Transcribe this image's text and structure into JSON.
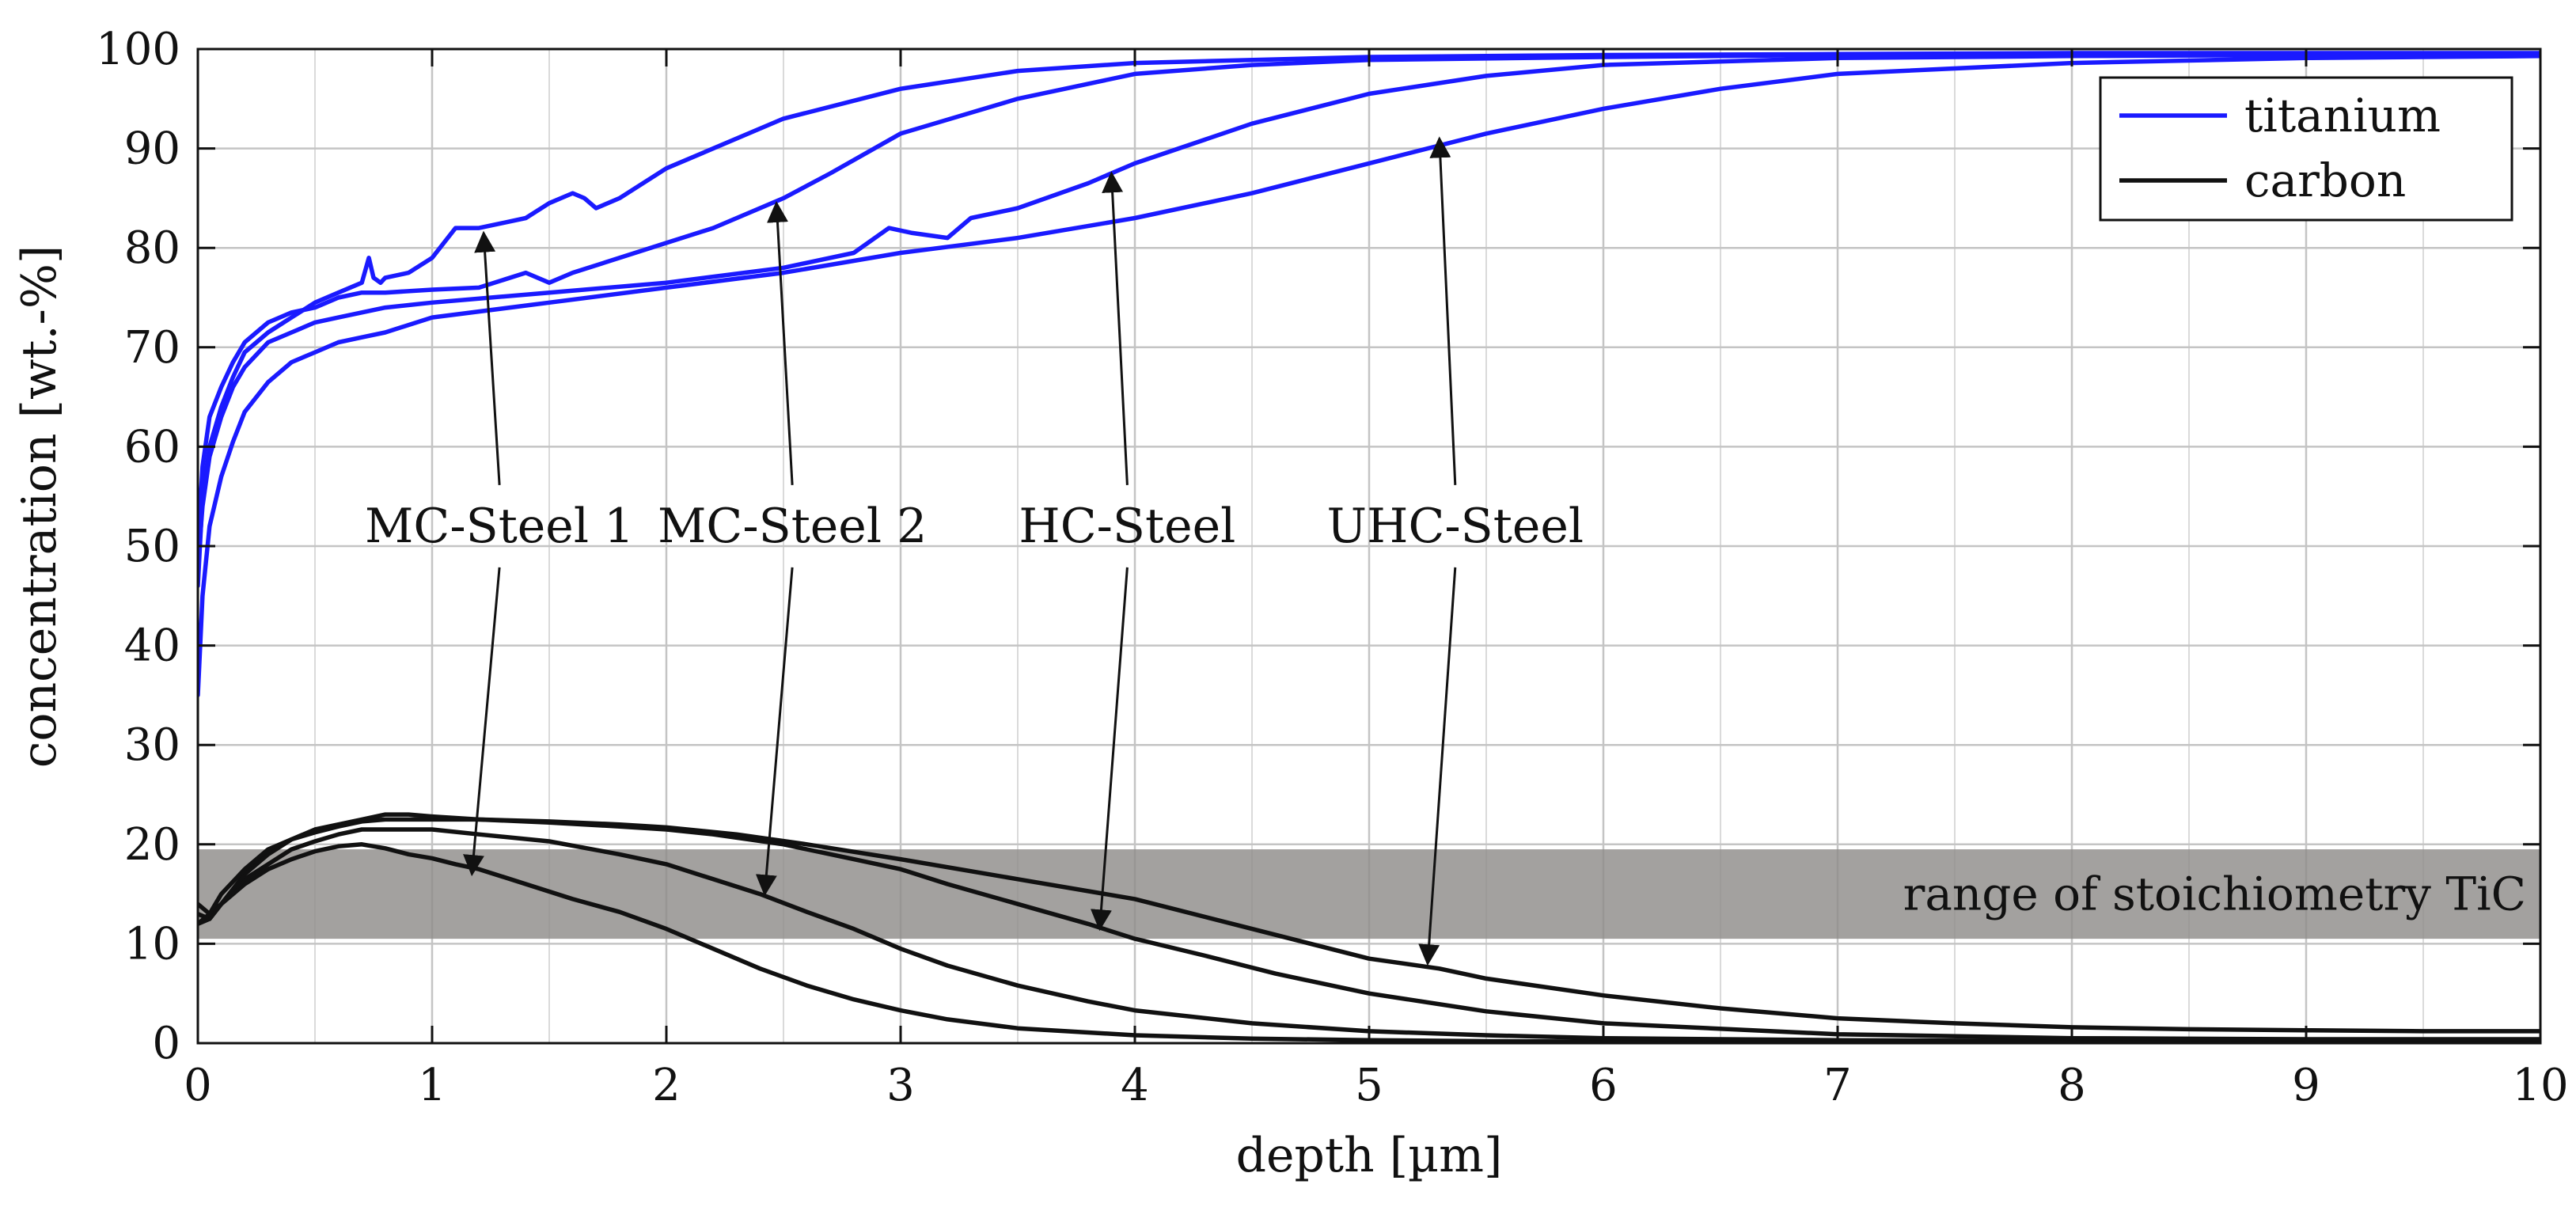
{
  "chart_data": {
    "type": "line",
    "title": "",
    "xlabel": "depth [µm]",
    "ylabel": "concentration [wt.-%]",
    "xlim": [
      0,
      10
    ],
    "ylim": [
      0,
      100
    ],
    "grid": true,
    "x_ticks": [
      0,
      1,
      2,
      3,
      4,
      5,
      6,
      7,
      8,
      9,
      10
    ],
    "y_ticks": [
      0,
      10,
      20,
      30,
      40,
      50,
      60,
      70,
      80,
      90,
      100
    ],
    "x_minor_step": 0.5,
    "legend": {
      "placement": "top-right",
      "entries": [
        {
          "label": "titanium",
          "color": "#1a1aff"
        },
        {
          "label": "carbon",
          "color": "#111111"
        }
      ]
    },
    "band": {
      "label": "range of stoichiometry TiC",
      "ymin": 10.5,
      "ymax": 19.5,
      "color": "#8f8c8a"
    },
    "series": [
      {
        "name": "MC-Steel 1 titanium",
        "element": "titanium",
        "color": "#1a1aff",
        "x": [
          0,
          0.02,
          0.05,
          0.1,
          0.15,
          0.2,
          0.3,
          0.4,
          0.5,
          0.6,
          0.7,
          0.73,
          0.75,
          0.78,
          0.8,
          0.9,
          1.0,
          1.1,
          1.2,
          1.3,
          1.4,
          1.5,
          1.6,
          1.65,
          1.7,
          1.8,
          2.0,
          2.5,
          3.0,
          3.5,
          4.0,
          5.0,
          6.0,
          7.0,
          8.0,
          9.0,
          10.0
        ],
        "y": [
          46,
          55,
          60,
          64,
          67,
          69.5,
          71.5,
          73,
          74.5,
          75.5,
          76.5,
          79,
          77,
          76.5,
          77,
          77.5,
          79,
          82,
          82,
          82.5,
          83,
          84.5,
          85.5,
          85,
          84,
          85,
          88,
          93,
          96,
          97.8,
          98.6,
          99.2,
          99.4,
          99.5,
          99.6,
          99.6,
          99.6
        ]
      },
      {
        "name": "MC-Steel 2 titanium",
        "element": "titanium",
        "color": "#1a1aff",
        "x": [
          0,
          0.02,
          0.05,
          0.1,
          0.15,
          0.2,
          0.3,
          0.4,
          0.5,
          0.6,
          0.7,
          0.8,
          1.0,
          1.2,
          1.4,
          1.5,
          1.6,
          1.8,
          2.0,
          2.2,
          2.5,
          2.7,
          3.0,
          3.5,
          4.0,
          4.5,
          5.0,
          6.0,
          7.0,
          8.0,
          9.0,
          10.0
        ],
        "y": [
          50,
          58,
          63,
          66,
          68.5,
          70.5,
          72.5,
          73.5,
          74,
          75,
          75.5,
          75.5,
          75.8,
          76,
          77.5,
          76.5,
          77.5,
          79,
          80.5,
          82,
          85,
          87.5,
          91.5,
          95,
          97.5,
          98.4,
          98.9,
          99.2,
          99.4,
          99.5,
          99.5,
          99.5
        ]
      },
      {
        "name": "HC-Steel titanium",
        "element": "titanium",
        "color": "#1a1aff",
        "x": [
          0,
          0.02,
          0.05,
          0.1,
          0.15,
          0.2,
          0.3,
          0.4,
          0.5,
          0.6,
          0.7,
          0.8,
          1.0,
          1.5,
          2.0,
          2.5,
          2.8,
          2.95,
          3.05,
          3.2,
          3.3,
          3.5,
          3.8,
          4.0,
          4.5,
          5.0,
          5.5,
          6.0,
          7.0,
          8.0,
          9.0,
          10.0
        ],
        "y": [
          48,
          54,
          59,
          63,
          66,
          68,
          70.5,
          71.5,
          72.5,
          73,
          73.5,
          74,
          74.5,
          75.5,
          76.5,
          78,
          79.5,
          82,
          81.5,
          81,
          83,
          84,
          86.5,
          88.5,
          92.5,
          95.5,
          97.3,
          98.4,
          99.1,
          99.3,
          99.4,
          99.5
        ]
      },
      {
        "name": "UHC-Steel titanium",
        "element": "titanium",
        "color": "#1a1aff",
        "x": [
          0,
          0.02,
          0.05,
          0.1,
          0.15,
          0.2,
          0.3,
          0.4,
          0.5,
          0.6,
          0.7,
          0.8,
          1.0,
          1.5,
          2.0,
          2.5,
          3.0,
          3.5,
          4.0,
          4.5,
          5.0,
          5.5,
          6.0,
          6.5,
          7.0,
          8.0,
          9.0,
          10.0
        ],
        "y": [
          35,
          45,
          52,
          57,
          60.5,
          63.5,
          66.5,
          68.5,
          69.5,
          70.5,
          71,
          71.5,
          73,
          74.5,
          76,
          77.5,
          79.5,
          81,
          83,
          85.5,
          88.5,
          91.5,
          94,
          96,
          97.5,
          98.6,
          99.1,
          99.3
        ]
      },
      {
        "name": "MC-Steel 1 carbon",
        "element": "carbon",
        "color": "#111111",
        "x": [
          0,
          0.05,
          0.1,
          0.2,
          0.3,
          0.4,
          0.5,
          0.6,
          0.7,
          0.8,
          0.9,
          1.0,
          1.1,
          1.2,
          1.4,
          1.6,
          1.8,
          2.0,
          2.2,
          2.4,
          2.6,
          2.8,
          3.0,
          3.2,
          3.5,
          4.0,
          4.5,
          5.0,
          5.5,
          6.0,
          7.0,
          8.0,
          9.0,
          10.0
        ],
        "y": [
          14,
          13,
          14,
          16,
          17.5,
          18.5,
          19.3,
          19.8,
          20,
          19.6,
          19,
          18.6,
          18,
          17.5,
          16,
          14.5,
          13.2,
          11.5,
          9.5,
          7.5,
          5.8,
          4.4,
          3.3,
          2.4,
          1.5,
          0.8,
          0.45,
          0.3,
          0.2,
          0.15,
          0.1,
          0.1,
          0.1,
          0.1
        ]
      },
      {
        "name": "MC-Steel 2 carbon",
        "element": "carbon",
        "color": "#111111",
        "x": [
          0,
          0.05,
          0.1,
          0.2,
          0.3,
          0.4,
          0.5,
          0.6,
          0.7,
          0.8,
          1.0,
          1.2,
          1.5,
          1.8,
          2.0,
          2.2,
          2.4,
          2.6,
          2.8,
          3.0,
          3.2,
          3.5,
          3.8,
          4.0,
          4.5,
          5.0,
          5.5,
          6.0,
          7.0,
          8.0,
          9.0,
          10.0
        ],
        "y": [
          12,
          12.5,
          14,
          16.5,
          18,
          19.5,
          20.3,
          21,
          21.5,
          21.5,
          21.5,
          21,
          20.3,
          19,
          18,
          16.5,
          15,
          13.2,
          11.5,
          9.5,
          7.8,
          5.8,
          4.2,
          3.3,
          2,
          1.2,
          0.8,
          0.5,
          0.3,
          0.2,
          0.2,
          0.2
        ]
      },
      {
        "name": "HC-Steel carbon",
        "element": "carbon",
        "color": "#111111",
        "x": [
          0,
          0.05,
          0.1,
          0.2,
          0.3,
          0.4,
          0.5,
          0.6,
          0.7,
          0.8,
          1.0,
          1.2,
          1.5,
          1.8,
          2.0,
          2.2,
          2.5,
          2.8,
          3.0,
          3.2,
          3.5,
          3.8,
          4.0,
          4.3,
          4.6,
          5.0,
          5.5,
          6.0,
          7.0,
          8.0,
          9.0,
          10.0
        ],
        "y": [
          13,
          12.5,
          14,
          17,
          19,
          20.5,
          21.2,
          21.8,
          22.3,
          22.5,
          22.5,
          22.5,
          22.2,
          21.8,
          21.5,
          21,
          20,
          18.5,
          17.5,
          16,
          14,
          12,
          10.5,
          8.8,
          7,
          5,
          3.2,
          2,
          0.9,
          0.5,
          0.4,
          0.4
        ]
      },
      {
        "name": "UHC-Steel carbon",
        "element": "carbon",
        "color": "#111111",
        "x": [
          0,
          0.05,
          0.1,
          0.2,
          0.3,
          0.4,
          0.5,
          0.6,
          0.7,
          0.8,
          0.9,
          1.0,
          1.2,
          1.5,
          1.8,
          2.0,
          2.3,
          2.6,
          3.0,
          3.5,
          4.0,
          4.5,
          5.0,
          5.3,
          5.5,
          6.0,
          6.5,
          7.0,
          7.5,
          8.0,
          8.5,
          9.0,
          9.5,
          10.0
        ],
        "y": [
          12,
          13,
          15,
          17.5,
          19.5,
          20.5,
          21.5,
          22,
          22.5,
          23,
          23,
          22.8,
          22.5,
          22.3,
          22,
          21.7,
          21,
          20,
          18.5,
          16.5,
          14.5,
          11.5,
          8.5,
          7.5,
          6.5,
          4.8,
          3.5,
          2.5,
          2,
          1.6,
          1.4,
          1.3,
          1.2,
          1.2
        ]
      }
    ],
    "annotations": [
      {
        "text": "MC-Steel 1",
        "arrow_to": [
          [
            1.22,
            81.5
          ],
          [
            1.17,
            17
          ]
        ]
      },
      {
        "text": "MC-Steel 2",
        "arrow_to": [
          [
            2.47,
            84.5
          ],
          [
            2.42,
            15
          ]
        ]
      },
      {
        "text": "HC-Steel",
        "arrow_to": [
          [
            3.9,
            87.5
          ],
          [
            3.85,
            11.5
          ]
        ]
      },
      {
        "text": "UHC-Steel",
        "arrow_to": [
          [
            5.3,
            91
          ],
          [
            5.25,
            8
          ]
        ]
      }
    ]
  }
}
